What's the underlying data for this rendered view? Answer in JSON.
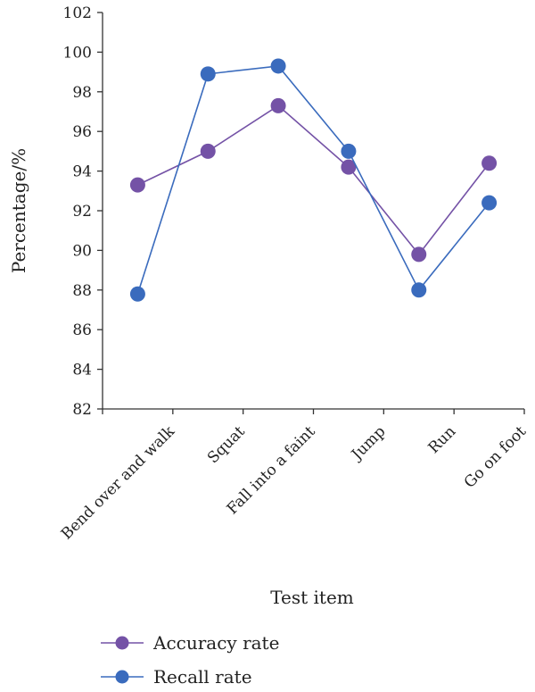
{
  "chart_data": {
    "type": "line",
    "title": "",
    "xlabel": "Test item",
    "ylabel": "Percentage/%",
    "categories": [
      "Bend over and walk",
      "Squat",
      "Fall into a faint",
      "Jump",
      "Run",
      "Go on foot"
    ],
    "ylim": [
      82,
      102
    ],
    "yticks": [
      82,
      84,
      86,
      88,
      90,
      92,
      94,
      96,
      98,
      100,
      102
    ],
    "grid": false,
    "legend_position": "bottom-left",
    "series": [
      {
        "name": "Accuracy rate",
        "color": "#7452a6",
        "values": [
          93.3,
          95.0,
          97.3,
          94.2,
          89.8,
          94.4
        ]
      },
      {
        "name": "Recall rate",
        "color": "#3a6bbd",
        "values": [
          87.8,
          98.9,
          99.3,
          95.0,
          88.0,
          92.4
        ]
      }
    ]
  }
}
